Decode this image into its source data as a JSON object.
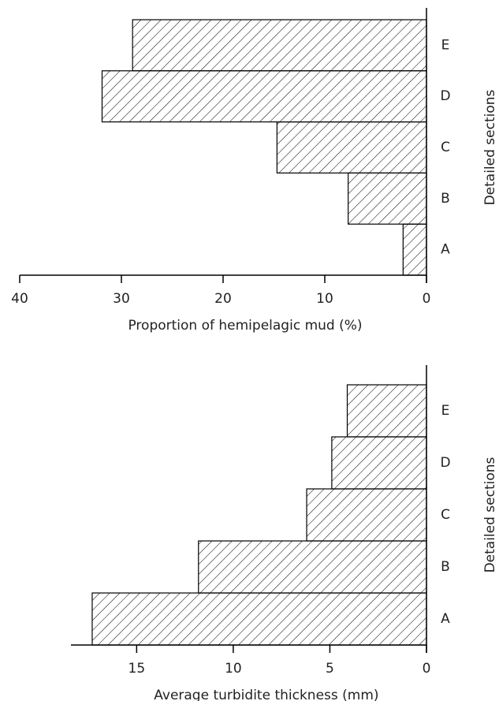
{
  "chart_data": [
    {
      "type": "bar",
      "orientation": "horizontal",
      "xlabel": "Proportion of hemipelagic mud (%)",
      "ylabel": "Detailed sections",
      "categories": [
        "A",
        "B",
        "C",
        "D",
        "E"
      ],
      "values": [
        2.3,
        7.7,
        14.7,
        31.9,
        28.9
      ],
      "xlim": [
        40,
        0
      ],
      "xticks": [
        40,
        30,
        20,
        10,
        0
      ],
      "color": "#000000",
      "hatch": true
    },
    {
      "type": "bar",
      "orientation": "horizontal",
      "xlabel": "Average turbidite thickness (mm)",
      "ylabel": "Detailed sections",
      "categories": [
        "A",
        "B",
        "C",
        "D",
        "E"
      ],
      "values": [
        17.3,
        11.8,
        6.2,
        4.9,
        4.1
      ],
      "xlim": [
        18.4,
        0
      ],
      "xticks": [
        15,
        10,
        5,
        0
      ],
      "color": "#000000",
      "hatch": true
    }
  ]
}
